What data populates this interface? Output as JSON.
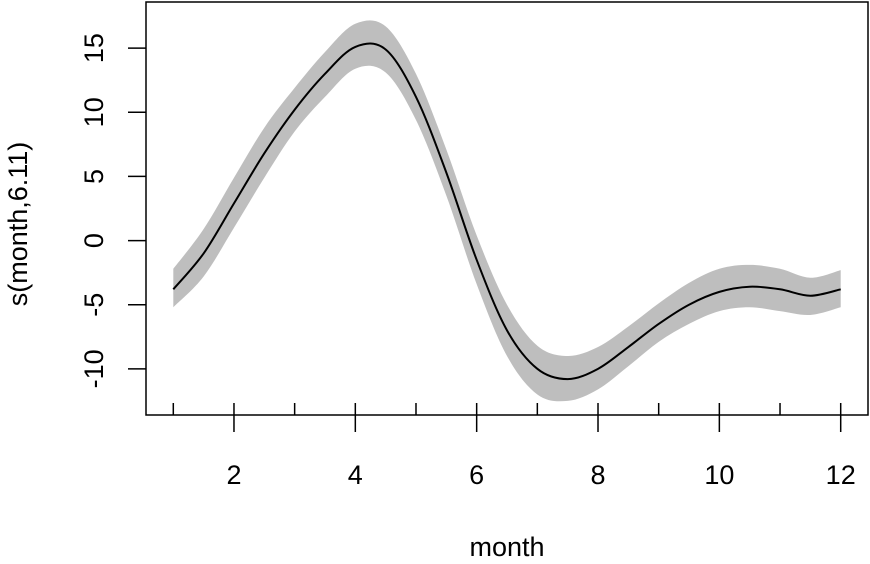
{
  "chart_data": {
    "type": "line",
    "title": "",
    "xlabel": "month",
    "ylabel": "s(month,6.11)",
    "xlim": [
      0.55,
      12.45
    ],
    "ylim": [
      -13.6,
      18.6
    ],
    "x_ticks": [
      1,
      2,
      3,
      4,
      5,
      6,
      7,
      8,
      9,
      10,
      11,
      12
    ],
    "x_tick_labels": [
      {
        "value": 2,
        "label": "2"
      },
      {
        "value": 4,
        "label": "4"
      },
      {
        "value": 6,
        "label": "6"
      },
      {
        "value": 8,
        "label": "8"
      },
      {
        "value": 10,
        "label": "10"
      },
      {
        "value": 12,
        "label": "12"
      }
    ],
    "y_ticks": [
      {
        "value": -10,
        "label": "-10"
      },
      {
        "value": -5,
        "label": "-5"
      },
      {
        "value": 0,
        "label": "0"
      },
      {
        "value": 5,
        "label": "5"
      },
      {
        "value": 10,
        "label": "10"
      },
      {
        "value": 15,
        "label": "15"
      }
    ],
    "grid": false,
    "colors": {
      "line": "#000000",
      "band": "#bebebe"
    },
    "series": [
      {
        "x": [
          1,
          1.5,
          2,
          2.5,
          3,
          3.5,
          4,
          4.5,
          5,
          5.5,
          6,
          6.5,
          7,
          7.5,
          8,
          8.5,
          9,
          9.5,
          10,
          10.5,
          11,
          11.5,
          12
        ],
        "y": [
          -3.8,
          -1.0,
          2.9,
          6.8,
          10.2,
          13.0,
          15.1,
          14.9,
          11.2,
          5.3,
          -1.5,
          -7.0,
          -10.0,
          -10.8,
          -10.0,
          -8.3,
          -6.5,
          -5.0,
          -4.0,
          -3.6,
          -3.8,
          -4.3,
          -3.8
        ],
        "lower": [
          -5.2,
          -2.8,
          1.0,
          4.9,
          8.5,
          11.2,
          13.4,
          13.1,
          9.4,
          3.5,
          -3.4,
          -9.0,
          -12.0,
          -12.5,
          -11.6,
          -9.8,
          -7.9,
          -6.5,
          -5.5,
          -5.2,
          -5.5,
          -5.8,
          -5.2
        ],
        "upper": [
          -2.2,
          0.9,
          4.9,
          8.8,
          11.9,
          14.7,
          16.9,
          16.7,
          13.0,
          7.1,
          0.4,
          -5.0,
          -8.2,
          -9.0,
          -8.3,
          -6.7,
          -4.9,
          -3.3,
          -2.2,
          -1.9,
          -2.2,
          -2.9,
          -2.3
        ]
      }
    ]
  }
}
